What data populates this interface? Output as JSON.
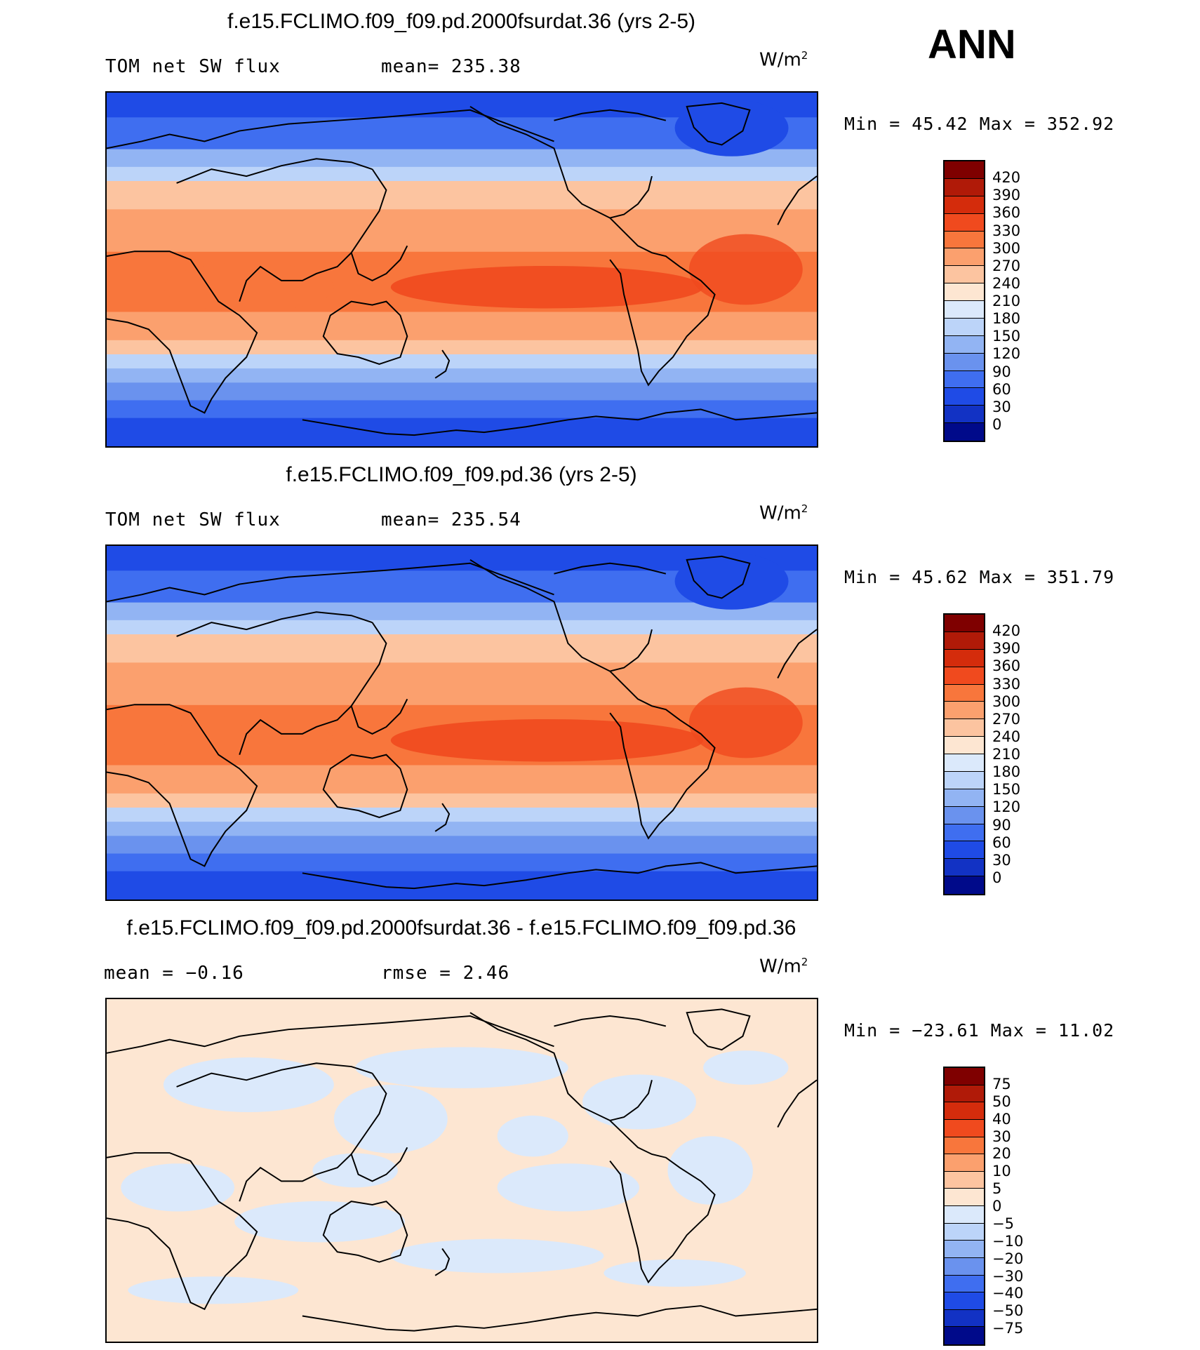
{
  "season": "ANN",
  "units_base": "W/m",
  "units_exp": "2",
  "panels": [
    {
      "title": "f.e15.FCLIMO.f09_f09.pd.2000fsurdat.36 (yrs 2-5)",
      "left_text": "TOM net SW flux",
      "mid_text": "mean= 235.38",
      "minmax": "Min =   45.42 Max = 352.92",
      "kind": "abs"
    },
    {
      "title": "f.e15.FCLIMO.f09_f09.pd.36 (yrs 2-5)",
      "left_text": "TOM net SW flux",
      "mid_text": "mean= 235.54",
      "minmax": "Min =   45.62 Max = 351.79",
      "kind": "abs"
    },
    {
      "title": "f.e15.FCLIMO.f09_f09.pd.2000fsurdat.36 - f.e15.FCLIMO.f09_f09.pd.36",
      "left_text": "mean =   −0.16",
      "mid_text": "rmse =    2.46",
      "minmax": "Min = −23.61 Max =   11.02",
      "kind": "diff"
    }
  ],
  "colorbars": {
    "abs": {
      "labels": [
        "420",
        "390",
        "360",
        "330",
        "300",
        "270",
        "240",
        "210",
        "180",
        "150",
        "120",
        "90",
        "60",
        "30",
        "0"
      ],
      "colors": [
        "#7f0000",
        "#b01a08",
        "#d42c0c",
        "#f04a1e",
        "#f8763c",
        "#fba06e",
        "#fcc4a0",
        "#fde6d2",
        "#dbe9fb",
        "#bcd4f9",
        "#92b4f3",
        "#6a92ee",
        "#3f6ef0",
        "#1f4be6",
        "#1232c4",
        "#000a8a"
      ]
    },
    "diff": {
      "labels": [
        "75",
        "50",
        "40",
        "30",
        "20",
        "10",
        "5",
        "0",
        "−5",
        "−10",
        "−20",
        "−30",
        "−40",
        "−50",
        "−75"
      ],
      "colors": [
        "#7f0000",
        "#b01a08",
        "#d42c0c",
        "#f04a1e",
        "#f8763c",
        "#fba06e",
        "#fcc4a0",
        "#fde6d2",
        "#dbe9fb",
        "#bcd4f9",
        "#92b4f3",
        "#6a92ee",
        "#3f6ef0",
        "#1f4be6",
        "#1232c4",
        "#000a8a"
      ]
    }
  }
}
